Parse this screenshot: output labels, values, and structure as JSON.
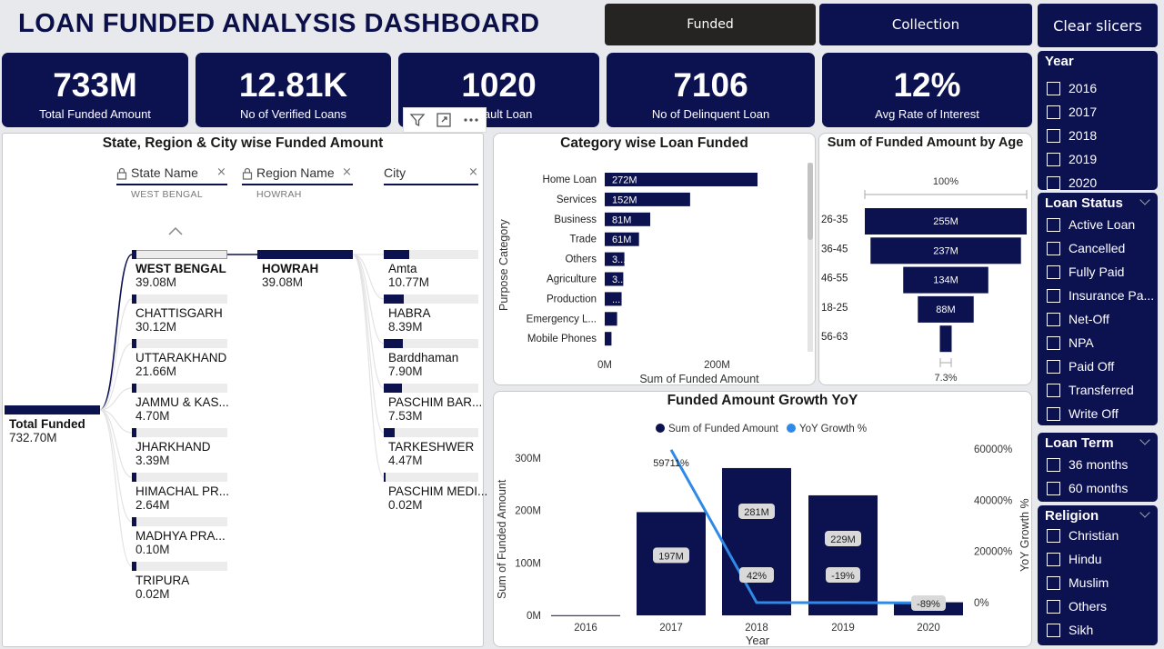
{
  "title": "LOAN FUNDED ANALYSIS DASHBOARD",
  "nav": {
    "funded": "Funded",
    "collection": "Collection",
    "clear": "Clear slicers"
  },
  "kpis": [
    {
      "value": "733M",
      "label": "Total Funded Amount"
    },
    {
      "value": "12.81K",
      "label": "No of Verified Loans"
    },
    {
      "value": "1020",
      "label": "Default Loan"
    },
    {
      "value": "7106",
      "label": "No of Delinquent Loan"
    },
    {
      "value": "12%",
      "label": "Avg Rate of Interest"
    }
  ],
  "decomp": {
    "title": "State, Region & City wise Funded Amount",
    "root_label": "Total Funded",
    "root_value": "732.70M",
    "headers": {
      "state": "State Name",
      "region": "Region Name",
      "city": "City"
    },
    "state_filter": "WEST BENGAL",
    "region_filter": "HOWRAH",
    "states": [
      {
        "name": "WEST BENGAL",
        "value": "39.08M",
        "amount": 39.08
      },
      {
        "name": "CHATTISGARH",
        "value": "30.12M",
        "amount": 30.12
      },
      {
        "name": "UTTARAKHAND",
        "value": "21.66M",
        "amount": 21.66
      },
      {
        "name": "JAMMU & KAS...",
        "value": "4.70M",
        "amount": 4.7
      },
      {
        "name": "JHARKHAND",
        "value": "3.39M",
        "amount": 3.39
      },
      {
        "name": "HIMACHAL PR...",
        "value": "2.64M",
        "amount": 2.64
      },
      {
        "name": "MADHYA PRA...",
        "value": "0.10M",
        "amount": 0.1
      },
      {
        "name": "TRIPURA",
        "value": "0.02M",
        "amount": 0.02
      }
    ],
    "region": {
      "name": "HOWRAH",
      "value": "39.08M"
    },
    "cities": [
      {
        "name": "Amta",
        "value": "10.77M",
        "amount": 10.77
      },
      {
        "name": "HABRA",
        "value": "8.39M",
        "amount": 8.39
      },
      {
        "name": "Barddhaman",
        "value": "7.90M",
        "amount": 7.9
      },
      {
        "name": "PASCHIM BAR...",
        "value": "7.53M",
        "amount": 7.53
      },
      {
        "name": "TARKESHWER",
        "value": "4.47M",
        "amount": 4.47
      },
      {
        "name": "PASCHIM MEDI...",
        "value": "0.02M",
        "amount": 0.02
      }
    ]
  },
  "category": {
    "title": "Category wise Loan Funded",
    "ylabel": "Purpose Category",
    "xlabel": "Sum of Funded Amount",
    "xticks": [
      "0M",
      "200M"
    ],
    "chart_data": {
      "type": "bar",
      "categories": [
        "Home Loan",
        "Services",
        "Business",
        "Trade",
        "Others",
        "Agriculture",
        "Production",
        "Emergency L...",
        "Mobile Phones"
      ],
      "values": [
        272,
        152,
        81,
        61,
        35,
        33,
        30,
        22,
        12
      ],
      "labels": [
        "272M",
        "152M",
        "81M",
        "61M",
        "3...",
        "3...",
        "...",
        "",
        ""
      ],
      "xlim": [
        0,
        340
      ]
    }
  },
  "age": {
    "title": "Sum of Funded Amount by Age",
    "top_label": "100%",
    "bottom_label": "7.3%",
    "chart_data": {
      "type": "bar",
      "categories": [
        "26-35",
        "36-45",
        "46-55",
        "18-25",
        "56-63"
      ],
      "values": [
        255,
        237,
        134,
        88,
        18.6
      ],
      "labels": [
        "255M",
        "237M",
        "134M",
        "88M",
        ""
      ]
    }
  },
  "growth": {
    "title": "Funded Amount Growth YoY",
    "legend": [
      "Sum of Funded Amount",
      "YoY Growth %"
    ],
    "ylabel_left": "Sum of Funded Amount",
    "ylabel_right": "YoY Growth %",
    "xlabel": "Year",
    "yticks_left": [
      "0M",
      "100M",
      "200M",
      "300M"
    ],
    "yticks_right": [
      "0%",
      "20000%",
      "40000%",
      "60000%"
    ],
    "chart_data": {
      "type": "bar",
      "categories": [
        "2016",
        "2017",
        "2018",
        "2019",
        "2020"
      ],
      "series": [
        {
          "name": "Sum of Funded Amount",
          "values": [
            0.33,
            197,
            281,
            229,
            25
          ],
          "labels": [
            "",
            "197M",
            "281M",
            "229M",
            ""
          ]
        },
        {
          "name": "YoY Growth %",
          "values": [
            null,
            59711,
            42,
            -19,
            -89
          ],
          "labels": [
            "",
            "59711%",
            "42%",
            "-19%",
            "-89%"
          ]
        }
      ],
      "ylim_left": [
        0,
        320
      ],
      "ylim_right": [
        -3000,
        64000
      ]
    }
  },
  "slicers": {
    "year": {
      "title": "Year",
      "items": [
        "2016",
        "2017",
        "2018",
        "2019",
        "2020"
      ]
    },
    "status": {
      "title": "Loan Status",
      "items": [
        "Active Loan",
        "Cancelled",
        "Fully Paid",
        "Insurance Pa...",
        "Net-Off",
        "NPA",
        "Paid Off",
        "Transferred",
        "Write Off"
      ]
    },
    "term": {
      "title": "Loan Term",
      "items": [
        "36 months",
        "60 months"
      ]
    },
    "religion": {
      "title": "Religion",
      "items": [
        "Christian",
        "Hindu",
        "Muslim",
        "Others",
        "Sikh"
      ]
    }
  },
  "colors": {
    "navy": "#0c1150",
    "dark": "#252423",
    "line": "#2e8ae6",
    "bg": "#e8e9ec"
  }
}
